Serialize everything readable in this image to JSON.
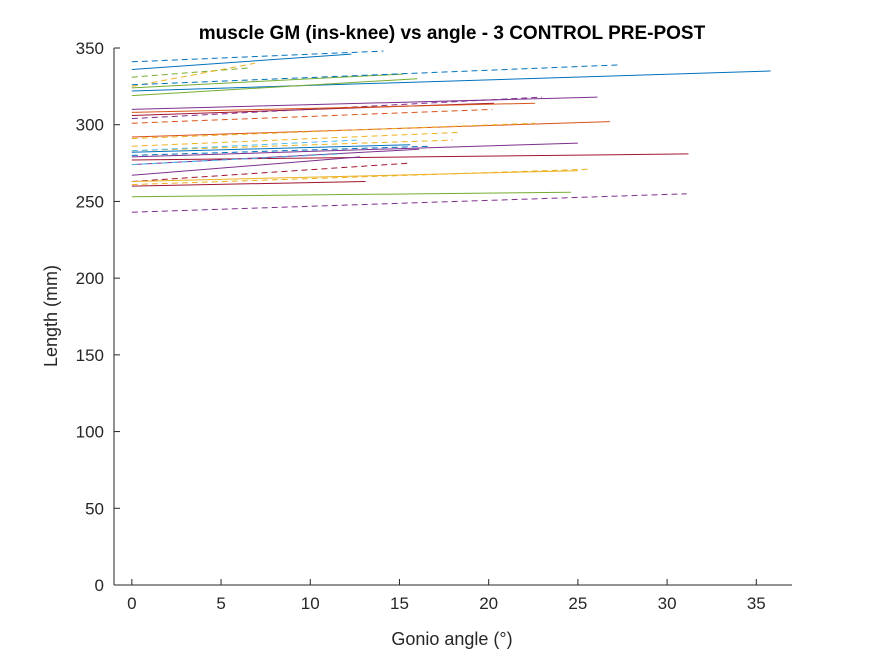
{
  "chart_data": {
    "type": "line",
    "title": "muscle GM (ins-knee) vs angle - 3 CONTROL PRE-POST",
    "xlabel": "Gonio angle (°)",
    "ylabel": "Length (mm)",
    "xlim": [
      -1,
      37
    ],
    "ylim": [
      0,
      350
    ],
    "xticks": [
      "0",
      "5",
      "10",
      "15",
      "20",
      "25",
      "30",
      "35"
    ],
    "yticks": [
      "0",
      "50",
      "100",
      "150",
      "200",
      "250",
      "300",
      "350"
    ],
    "grid": false,
    "legend": "none",
    "series": [
      {
        "color": "#0072BD",
        "dash": false,
        "x": [
          0,
          12.3
        ],
        "y": [
          336,
          346
        ]
      },
      {
        "color": "#0072BD",
        "dash": true,
        "x": [
          0,
          14.1
        ],
        "y": [
          341,
          348
        ]
      },
      {
        "color": "#77AC30",
        "dash": true,
        "x": [
          0,
          6.6
        ],
        "y": [
          331,
          337
        ]
      },
      {
        "color": "#EDB120",
        "dash": true,
        "x": [
          0,
          6.9
        ],
        "y": [
          325,
          340
        ]
      },
      {
        "color": "#0072BD",
        "dash": false,
        "x": [
          0,
          35.8
        ],
        "y": [
          322,
          335
        ]
      },
      {
        "color": "#77AC30",
        "dash": false,
        "x": [
          0,
          16.0
        ],
        "y": [
          319,
          330
        ]
      },
      {
        "color": "#77AC30",
        "dash": false,
        "x": [
          0,
          15.2
        ],
        "y": [
          324,
          333
        ]
      },
      {
        "color": "#0072BD",
        "dash": true,
        "x": [
          0,
          27.3
        ],
        "y": [
          326,
          339
        ]
      },
      {
        "color": "#7E2F8E",
        "dash": false,
        "x": [
          0,
          26.1
        ],
        "y": [
          310,
          318
        ]
      },
      {
        "color": "#A2142F",
        "dash": false,
        "x": [
          0,
          20.3
        ],
        "y": [
          306,
          314
        ]
      },
      {
        "color": "#7E2F8E",
        "dash": true,
        "x": [
          0,
          23.0
        ],
        "y": [
          304,
          318
        ]
      },
      {
        "color": "#D95319",
        "dash": false,
        "x": [
          0,
          22.6
        ],
        "y": [
          308,
          314
        ]
      },
      {
        "color": "#D95319",
        "dash": true,
        "x": [
          0,
          20.2
        ],
        "y": [
          301,
          310
        ]
      },
      {
        "color": "#D95319",
        "dash": false,
        "x": [
          0,
          26.8
        ],
        "y": [
          292,
          302
        ]
      },
      {
        "color": "#EDB120",
        "dash": true,
        "x": [
          0,
          22.6
        ],
        "y": [
          291,
          301
        ]
      },
      {
        "color": "#EDB120",
        "dash": true,
        "x": [
          0,
          18.4
        ],
        "y": [
          286,
          295
        ]
      },
      {
        "color": "#EDB120",
        "dash": true,
        "x": [
          0,
          18.0
        ],
        "y": [
          283,
          290
        ]
      },
      {
        "color": "#4DBEEE",
        "dash": true,
        "x": [
          0,
          12.6
        ],
        "y": [
          283,
          290
        ]
      },
      {
        "color": "#0072BD",
        "dash": false,
        "x": [
          0,
          15.6
        ],
        "y": [
          282,
          287
        ]
      },
      {
        "color": "#0072BD",
        "dash": true,
        "x": [
          0,
          16.8
        ],
        "y": [
          280,
          286
        ]
      },
      {
        "color": "#7E2F8E",
        "dash": false,
        "x": [
          0,
          25.0
        ],
        "y": [
          279,
          288
        ]
      },
      {
        "color": "#A2142F",
        "dash": false,
        "x": [
          0,
          31.2
        ],
        "y": [
          277,
          281
        ]
      },
      {
        "color": "#7E2F8E",
        "dash": false,
        "x": [
          0,
          16.1
        ],
        "y": [
          274,
          284
        ]
      },
      {
        "color": "#4DBEEE",
        "dash": true,
        "x": [
          0,
          11.8
        ],
        "y": [
          274,
          281
        ]
      },
      {
        "color": "#7E2F8E",
        "dash": false,
        "x": [
          0,
          12.8
        ],
        "y": [
          267,
          279
        ]
      },
      {
        "color": "#A2142F",
        "dash": true,
        "x": [
          0,
          15.6
        ],
        "y": [
          263,
          275
        ]
      },
      {
        "color": "#EDB120",
        "dash": true,
        "x": [
          0,
          25.6
        ],
        "y": [
          261,
          271
        ]
      },
      {
        "color": "#EDB120",
        "dash": false,
        "x": [
          0,
          25.0
        ],
        "y": [
          263,
          270
        ]
      },
      {
        "color": "#A2142F",
        "dash": false,
        "x": [
          0,
          13.1
        ],
        "y": [
          260,
          263
        ]
      },
      {
        "color": "#77AC30",
        "dash": false,
        "x": [
          0,
          24.6
        ],
        "y": [
          253,
          256
        ]
      },
      {
        "color": "#7E2F8E",
        "dash": true,
        "x": [
          0,
          31.1
        ],
        "y": [
          243,
          255
        ]
      }
    ]
  }
}
